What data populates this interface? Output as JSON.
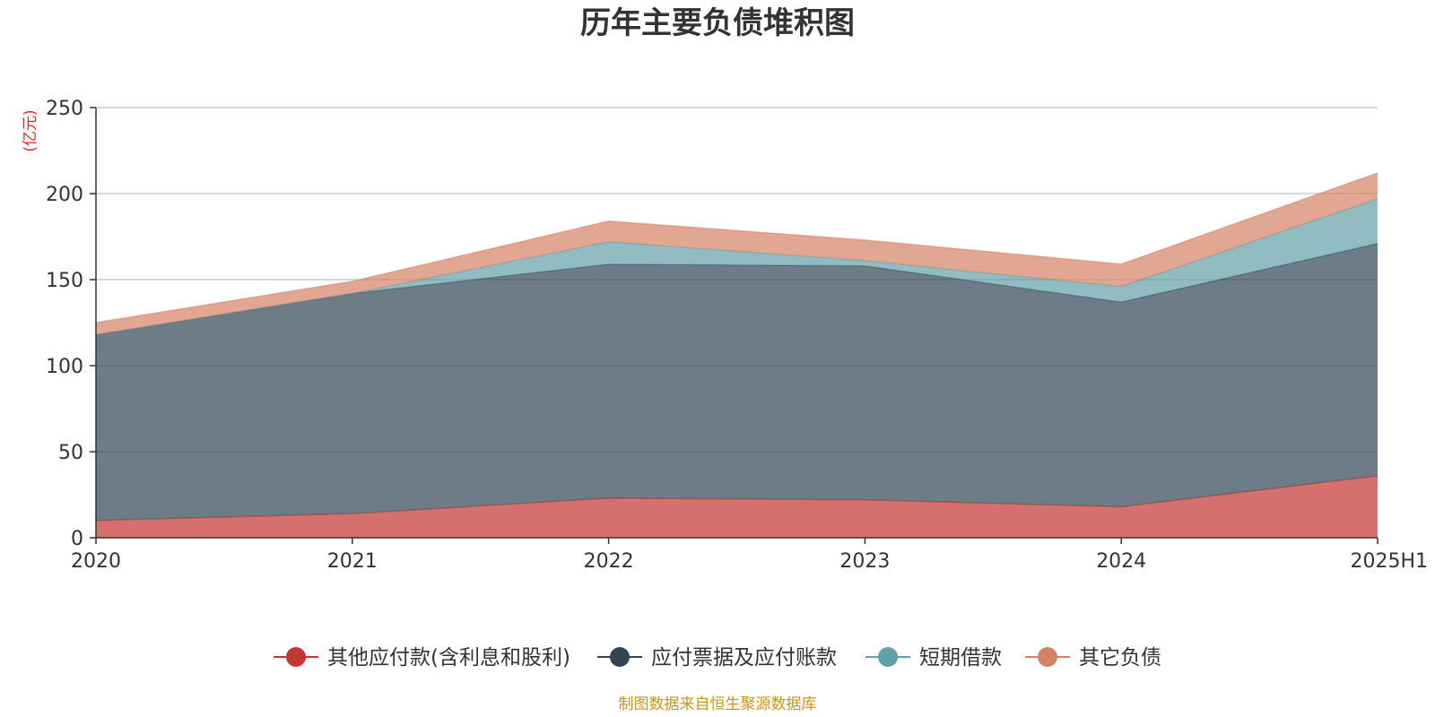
{
  "chart_data": {
    "type": "area",
    "stacked": true,
    "title": "历年主要负债堆积图",
    "unit": "(亿元)",
    "categories": [
      "2020",
      "2021",
      "2022",
      "2023",
      "2024",
      "2025H1"
    ],
    "ylim": [
      0,
      250
    ],
    "yticks": [
      "0",
      "50",
      "100",
      "150",
      "200",
      "250"
    ],
    "grid": true,
    "legend_position": "bottom",
    "series": [
      {
        "name": "其他应付款(含利息和股利)",
        "color": "#c23531",
        "values": [
          10,
          14,
          23,
          22,
          18,
          36
        ]
      },
      {
        "name": "应付票据及应付账款",
        "color": "#2f4554",
        "values": [
          108,
          128,
          136,
          136,
          119,
          135
        ]
      },
      {
        "name": "短期借款",
        "color": "#61a0a8",
        "values": [
          0,
          0,
          13,
          3,
          9,
          26
        ]
      },
      {
        "name": "其它负债",
        "color": "#d48265",
        "values": [
          7,
          7,
          12,
          12,
          13,
          15
        ]
      }
    ],
    "source": "制图数据来自恒生聚源数据库"
  }
}
